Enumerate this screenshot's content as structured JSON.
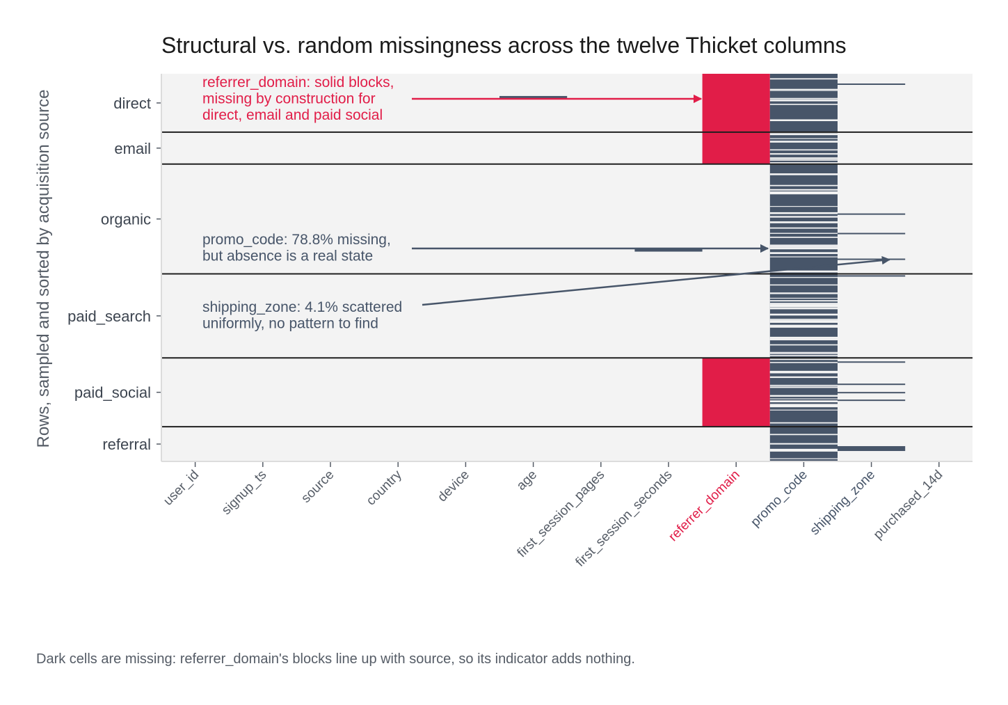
{
  "chart_data": {
    "type": "heatmap",
    "title": "Structural vs. random missingness across the twelve Thicket columns",
    "ylabel": "Rows, sampled and sorted by acquisition source",
    "xlabel": "",
    "columns": [
      "user_id",
      "signup_ts",
      "source",
      "country",
      "device",
      "age",
      "first_session_pages",
      "first_session_seconds",
      "referrer_domain",
      "promo_code",
      "shipping_zone",
      "purchased_14d"
    ],
    "highlighted_columns": {
      "referrer_domain": "#e11d48",
      "promo_code": "#475569",
      "shipping_zone": "#475569"
    },
    "groups": [
      "direct",
      "email",
      "organic",
      "paid_search",
      "paid_social",
      "referral"
    ],
    "group_row_bounds": [
      0,
      84,
      130,
      288,
      409,
      508,
      558
    ],
    "total_rows": 558,
    "colors": {
      "missing": "#475569",
      "structural_missing": "#e11d48",
      "present": "#f3f3f3",
      "separator": "#1f1f1f"
    },
    "missing_cells": {
      "referrer_domain": [
        [
          0,
          130
        ],
        [
          409,
          508
        ]
      ],
      "age": [
        [
          32,
          35
        ]
      ],
      "first_session_seconds": [
        [
          252,
          256
        ]
      ],
      "shipping_zone": [
        [
          14,
          15
        ],
        [
          201,
          202
        ],
        [
          229,
          230
        ],
        [
          266,
          267
        ],
        [
          290,
          292
        ],
        [
          414,
          415
        ],
        [
          446,
          447
        ],
        [
          458,
          459
        ],
        [
          469,
          470
        ],
        [
          536,
          543
        ]
      ]
    },
    "promo_code_missing_pct": 78.8,
    "shipping_zone_missing_pct": 4.1,
    "annotations": [
      {
        "column": "referrer_domain",
        "color": "#e11d48",
        "text": [
          "referrer_domain: solid blocks,",
          "missing by construction for",
          "direct, email and paid social"
        ]
      },
      {
        "column": "promo_code",
        "color": "#475569",
        "text": [
          "promo_code: 78.8% missing,",
          "but absence is a real state"
        ]
      },
      {
        "column": "shipping_zone",
        "color": "#475569",
        "text": [
          "shipping_zone: 4.1% scattered",
          "uniformly, no pattern to find"
        ]
      }
    ]
  },
  "caption": "Dark cells are missing: referrer_domain's blocks line up with source, so its indicator adds nothing."
}
